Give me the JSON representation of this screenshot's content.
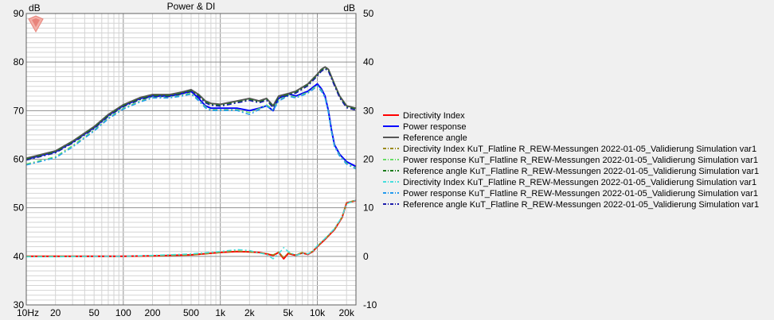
{
  "chart_data": {
    "type": "line",
    "title": "Power & DI",
    "left_unit": "dB",
    "right_unit": "dB",
    "xscale": "log",
    "xlim": [
      10,
      25000
    ],
    "ylim_left": [
      30,
      90
    ],
    "ylim_right": [
      -10,
      50
    ],
    "grid": true,
    "legend_position": "right",
    "x_ticks": [
      {
        "v": 10,
        "label": "10Hz"
      },
      {
        "v": 20,
        "label": "20"
      },
      {
        "v": 50,
        "label": "50"
      },
      {
        "v": 100,
        "label": "100"
      },
      {
        "v": 200,
        "label": "200"
      },
      {
        "v": 500,
        "label": "500"
      },
      {
        "v": 1000,
        "label": "1k"
      },
      {
        "v": 2000,
        "label": "2k"
      },
      {
        "v": 5000,
        "label": "5k"
      },
      {
        "v": 10000,
        "label": "10k"
      },
      {
        "v": 20000,
        "label": "20k"
      }
    ],
    "y_ticks_left": [
      "30",
      "40",
      "50",
      "60",
      "70",
      "80",
      "90"
    ],
    "y_ticks_right": [
      "-10",
      "0",
      "10",
      "20",
      "30",
      "40",
      "50"
    ],
    "series": [
      {
        "name": "Directivity Index",
        "color": "#ff0000",
        "dash": "solid",
        "width": 2,
        "axis": "right",
        "x": [
          10,
          20,
          50,
          100,
          200,
          500,
          1000,
          1500,
          2000,
          2500,
          3000,
          3500,
          4000,
          4500,
          5000,
          6000,
          7000,
          8000,
          9000,
          10000,
          12000,
          15000,
          18000,
          20000,
          25000
        ],
        "y": [
          0,
          0,
          0,
          0,
          0.1,
          0.3,
          0.8,
          1.0,
          0.9,
          0.8,
          0.5,
          0.2,
          0.8,
          -0.5,
          0.6,
          0.2,
          0.7,
          0.4,
          1.0,
          2.0,
          3.5,
          5.5,
          8.0,
          11.0,
          11.5
        ]
      },
      {
        "name": "Power response",
        "color": "#0000ff",
        "dash": "solid",
        "width": 2,
        "axis": "left",
        "x": [
          10,
          20,
          30,
          50,
          70,
          100,
          150,
          200,
          300,
          400,
          500,
          600,
          700,
          800,
          1000,
          1500,
          2000,
          2500,
          3000,
          3500,
          4000,
          5000,
          6000,
          8000,
          10000,
          11000,
          12000,
          13000,
          14000,
          15000,
          17000,
          20000,
          25000
        ],
        "y": [
          60,
          61.5,
          63.5,
          66.5,
          69,
          71,
          72.5,
          73,
          73,
          73.5,
          74,
          72.5,
          71,
          70.5,
          70.5,
          70.5,
          70,
          70.5,
          71,
          70,
          72.5,
          73.5,
          73,
          74,
          75.5,
          74.5,
          73,
          70,
          66,
          63,
          61,
          59.5,
          58.5
        ]
      },
      {
        "name": "Reference angle",
        "color": "#555555",
        "dash": "solid",
        "width": 2,
        "axis": "left",
        "x": [
          10,
          20,
          30,
          50,
          70,
          100,
          150,
          200,
          300,
          400,
          500,
          600,
          700,
          800,
          1000,
          1500,
          2000,
          2500,
          3000,
          3500,
          4000,
          5000,
          6000,
          8000,
          10000,
          11000,
          12000,
          13000,
          15000,
          17000,
          20000,
          25000
        ],
        "y": [
          60.2,
          61.7,
          63.7,
          66.7,
          69.2,
          71.2,
          72.7,
          73.3,
          73.3,
          73.8,
          74.3,
          73.3,
          72,
          71.5,
          71.3,
          72,
          72.5,
          72,
          72.5,
          71,
          73,
          73.5,
          74,
          75.5,
          77.5,
          78.5,
          79,
          78.5,
          75.5,
          73,
          71,
          70.5
        ]
      },
      {
        "name": "Directivity Index KuT_Flatline R_REW-Messungen 2022-01-05_Validierung Simulation var1",
        "color": "#9a8a1a",
        "dash": "6,3,2,3",
        "width": 1.5,
        "axis": "right",
        "x": [
          10,
          20,
          50,
          100,
          200,
          500,
          1000,
          1500,
          2000,
          2500,
          3000,
          3500,
          4000,
          4500,
          5000,
          6000,
          7000,
          8000,
          9000,
          10000,
          12000,
          15000,
          18000,
          20000,
          25000
        ],
        "y": [
          0,
          0,
          0,
          0,
          0.1,
          0.3,
          0.8,
          1.1,
          0.9,
          0.7,
          0.6,
          0.3,
          0.9,
          -0.3,
          0.7,
          0.3,
          0.8,
          0.5,
          1.1,
          2.1,
          3.6,
          5.6,
          8.1,
          11.0,
          11.6
        ]
      },
      {
        "name": "Power response KuT_Flatline R_REW-Messungen 2022-01-05_Validierung Simulation var1",
        "color": "#66dd66",
        "dash": "6,3,2,3",
        "width": 1.5,
        "axis": "left",
        "x": [
          10,
          20,
          30,
          50,
          70,
          100,
          150,
          200,
          300,
          400,
          500,
          600,
          700,
          800,
          1000,
          1500,
          2000,
          2500,
          3000,
          3500,
          4000,
          5000,
          6000,
          8000,
          10000,
          11000,
          12000,
          13000,
          14000,
          15000,
          17000,
          20000,
          25000
        ],
        "y": [
          59,
          60.5,
          62.8,
          66,
          68.5,
          70.5,
          72,
          72.8,
          72.8,
          73.2,
          73.6,
          72.2,
          70.8,
          70.2,
          70.2,
          70.2,
          69.6,
          70.4,
          71.2,
          70.2,
          72.2,
          73.2,
          72.8,
          73.8,
          75.2,
          74.2,
          72.8,
          69.8,
          65.8,
          62.8,
          60.8,
          59.2,
          58.2
        ]
      },
      {
        "name": "Reference angle KuT_Flatline R_REW-Messungen 2022-01-05_Validierung Simulation var1",
        "color": "#1a7a1a",
        "dash": "6,3,2,3",
        "width": 1.5,
        "axis": "left",
        "x": [
          10,
          20,
          30,
          50,
          70,
          100,
          150,
          200,
          300,
          400,
          500,
          600,
          700,
          800,
          1000,
          1500,
          2000,
          2500,
          3000,
          3500,
          4000,
          5000,
          6000,
          8000,
          10000,
          11000,
          12000,
          13000,
          15000,
          17000,
          20000,
          25000
        ],
        "y": [
          60,
          61.5,
          63.5,
          66.5,
          69,
          71,
          72.5,
          73.1,
          73.1,
          73.6,
          74.1,
          73.1,
          71.8,
          71.3,
          71.1,
          71.8,
          72.3,
          71.8,
          72.3,
          70.8,
          72.8,
          73.3,
          73.8,
          75.3,
          77.3,
          78.3,
          78.8,
          78.3,
          75.3,
          72.8,
          70.8,
          70.3
        ]
      },
      {
        "name": "Directivity Index KuT_Flatline R_REW-Messungen 2022-01-05_Validierung Simulation var1",
        "color": "#44dddd",
        "dash": "6,3,2,3",
        "width": 1.5,
        "axis": "right",
        "x": [
          10,
          20,
          50,
          100,
          200,
          500,
          1000,
          1500,
          2000,
          2500,
          3000,
          3500,
          4000,
          4500,
          5000,
          6000,
          7000,
          8000,
          9000,
          10000,
          12000,
          15000,
          18000,
          20000,
          25000
        ],
        "y": [
          -0.1,
          -0.1,
          0,
          0,
          0.2,
          0.5,
          1.0,
          1.4,
          1.2,
          0.7,
          0.4,
          -0.5,
          0.5,
          1.8,
          1.0,
          0.2,
          0.6,
          0.5,
          1.1,
          2.2,
          3.7,
          5.7,
          8.2,
          10.8,
          11.6
        ]
      },
      {
        "name": "Power response KuT_Flatline R_REW-Messungen 2022-01-05_Validierung Simulation var1",
        "color": "#2299ee",
        "dash": "6,3,2,3",
        "width": 1.5,
        "axis": "left",
        "x": [
          10,
          20,
          30,
          50,
          70,
          100,
          150,
          200,
          300,
          400,
          500,
          600,
          700,
          800,
          1000,
          1500,
          2000,
          2500,
          3000,
          3500,
          4000,
          5000,
          6000,
          8000,
          10000,
          11000,
          12000,
          13000,
          14000,
          15000,
          17000,
          20000,
          25000
        ],
        "y": [
          58.8,
          60.3,
          62.5,
          65.8,
          68.3,
          70.3,
          71.8,
          72.6,
          72.6,
          73.0,
          73.4,
          72.0,
          70.6,
          70.0,
          70.0,
          70.0,
          69.2,
          70.2,
          71.0,
          70.0,
          72.0,
          73.0,
          72.6,
          73.6,
          75.0,
          74.0,
          72.6,
          69.6,
          65.6,
          62.6,
          60.6,
          59.0,
          58.0
        ]
      },
      {
        "name": "Reference angle KuT_Flatline R_REW-Messungen 2022-01-05_Validierung Simulation var1",
        "color": "#1a1aaa",
        "dash": "6,3,2,3",
        "width": 1.5,
        "axis": "left",
        "x": [
          10,
          20,
          30,
          50,
          70,
          100,
          150,
          200,
          300,
          400,
          500,
          600,
          700,
          800,
          1000,
          1500,
          2000,
          2500,
          3000,
          3500,
          4000,
          5000,
          6000,
          8000,
          10000,
          11000,
          12000,
          13000,
          15000,
          17000,
          20000,
          25000
        ],
        "y": [
          59.8,
          61.3,
          63.3,
          66.3,
          68.8,
          70.8,
          72.3,
          72.9,
          72.9,
          73.4,
          73.9,
          72.9,
          71.6,
          71.1,
          70.9,
          71.6,
          72.1,
          71.6,
          72.1,
          70.6,
          72.6,
          73.1,
          73.6,
          75.1,
          77.1,
          78.1,
          78.6,
          78.1,
          75.1,
          72.6,
          70.6,
          70.1
        ]
      }
    ]
  },
  "colors": {
    "background": "#f0f0f0",
    "plot_background": "#ffffff",
    "grid_major": "#909090",
    "grid_minor": "#d4d4d4",
    "logo": "#e8837a"
  },
  "logo_icon": "rew-logo-icon"
}
